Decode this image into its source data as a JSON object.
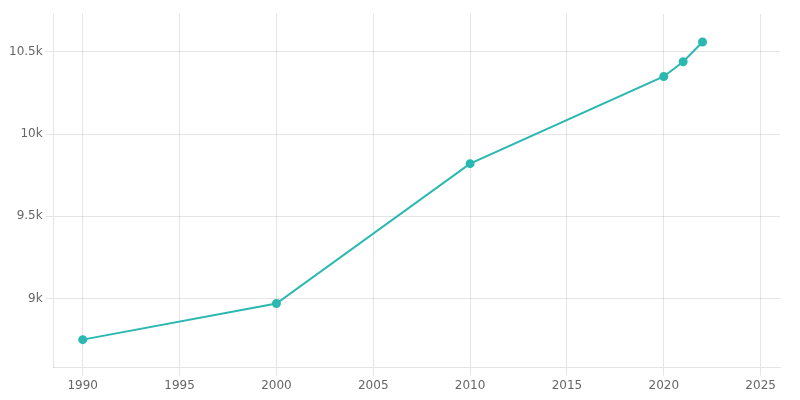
{
  "chart_data": {
    "type": "line",
    "x": [
      1990,
      2000,
      2010,
      2020,
      2021,
      2022
    ],
    "values": [
      8750,
      8970,
      9820,
      10350,
      10440,
      10560
    ],
    "color": "#2ab8b0",
    "marker": "circle",
    "xlim": [
      1988.5,
      2026
    ],
    "xticks": [
      1990,
      1995,
      2000,
      2005,
      2010,
      2015,
      2020,
      2025
    ],
    "ylim": [
      8580,
      10730
    ],
    "yticks": [
      {
        "value": 9000,
        "label": "9k"
      },
      {
        "value": 9500,
        "label": "9.5k"
      },
      {
        "value": 10000,
        "label": "10k"
      },
      {
        "value": 10500,
        "label": "10.5k"
      }
    ],
    "grid": true
  }
}
